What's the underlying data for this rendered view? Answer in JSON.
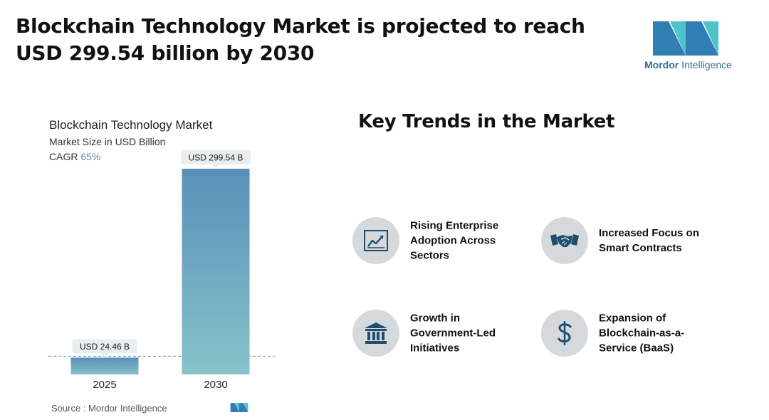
{
  "header": {
    "title": "Blockchain Technology Market is projected to reach USD 299.54 billion by 2030"
  },
  "brand": {
    "name_bold": "Mordor",
    "name_rest": "Intelligence"
  },
  "chart": {
    "title": "Blockchain Technology Market",
    "subtitle": "Market Size in USD Billion",
    "cagr_label": "CAGR",
    "cagr_value": "65%"
  },
  "chart_data": {
    "type": "bar",
    "title": "Blockchain Technology Market",
    "subtitle": "Market Size in USD Billion",
    "categories": [
      "2025",
      "2030"
    ],
    "values": [
      24.46,
      299.54
    ],
    "data_labels": [
      "USD 24.46 B",
      "USD 299.54 B"
    ],
    "ylim": [
      0,
      299.54
    ],
    "grid": false,
    "colors": {
      "bar_top": "#5b8fb9",
      "bar_bottom": "#85c3c9",
      "reference_line": "#5e8fa6",
      "label_bg": "#e8edf0"
    }
  },
  "source": {
    "text": "Source :  Mordor Intelligence"
  },
  "trends": {
    "title": "Key Trends in the Market",
    "items": [
      {
        "label": "Rising Enterprise Adoption Across Sectors",
        "icon": "line-chart-icon"
      },
      {
        "label": "Increased Focus on Smart Contracts",
        "icon": "handshake-icon"
      },
      {
        "label": "Growth in Government-Led Initiatives",
        "icon": "government-building-icon"
      },
      {
        "label": "Expansion of Blockchain-as-a-Service (BaaS)",
        "icon": "dollar-sign-icon"
      }
    ]
  },
  "colors": {
    "icon_dark": "#1f4f6e",
    "circle_bg": "#d5d9dc",
    "logo_blue": "#2f7fb5",
    "logo_teal": "#4fc3c8"
  }
}
